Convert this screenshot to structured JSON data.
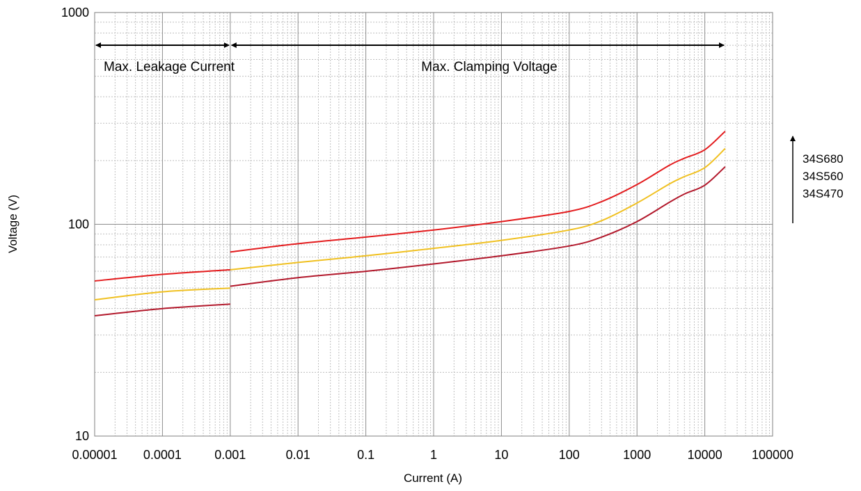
{
  "chart_data": {
    "type": "line",
    "xlabel": "Current (A)",
    "ylabel": "Voltage (V)",
    "x_scale": "log",
    "y_scale": "log",
    "xlim": [
      1e-05,
      100000
    ],
    "ylim": [
      10,
      1000
    ],
    "grid": true,
    "x_tick_labels": [
      "0.00001",
      "0.0001",
      "0.001",
      "0.01",
      "0.1",
      "1",
      "10",
      "100",
      "1000",
      "10000",
      "100000"
    ],
    "x_tick_values": [
      1e-05,
      0.0001,
      0.001,
      0.01,
      0.1,
      1,
      10,
      100,
      1000,
      10000,
      100000
    ],
    "y_tick_labels": [
      "10",
      "100",
      "1000"
    ],
    "y_tick_values": [
      10,
      100,
      1000
    ],
    "annotations": {
      "leakage": {
        "text": "Max. Leakage Current",
        "from": 1e-05,
        "to": 0.001
      },
      "clamping": {
        "text": "Max. Clamping Voltage",
        "from": 0.001,
        "to": 20000
      }
    },
    "ordering_arrow": {
      "labels": [
        "34S680",
        "34S560",
        "34S470"
      ]
    },
    "series": [
      {
        "color": "#e31a1c",
        "segments": [
          {
            "x": [
              1e-05,
              0.0001,
              0.001
            ],
            "y": [
              54,
              58,
              61
            ]
          },
          {
            "x": [
              0.001,
              0.01,
              0.1,
              1,
              10,
              100,
              300,
              1000,
              3000,
              5000,
              10000,
              20000
            ],
            "y": [
              74,
              81,
              87,
              94,
              103,
              115,
              128,
              154,
              190,
              205,
              225,
              275
            ]
          }
        ]
      },
      {
        "color": "#f0c020",
        "segments": [
          {
            "x": [
              1e-05,
              0.0001,
              0.001
            ],
            "y": [
              44,
              48,
              50
            ]
          },
          {
            "x": [
              0.001,
              0.01,
              0.1,
              1,
              10,
              100,
              300,
              1000,
              3000,
              5000,
              10000,
              20000
            ],
            "y": [
              61,
              66,
              71,
              77,
              84,
              94,
              104,
              126,
              155,
              168,
              185,
              228
            ]
          }
        ]
      },
      {
        "color": "#b2182b",
        "segments": [
          {
            "x": [
              1e-05,
              0.0001,
              0.001
            ],
            "y": [
              37,
              40,
              42
            ]
          },
          {
            "x": [
              0.001,
              0.01,
              0.1,
              1,
              10,
              100,
              300,
              1000,
              3000,
              5000,
              10000,
              20000
            ],
            "y": [
              51,
              56,
              60,
              65,
              71,
              79,
              87,
              103,
              127,
              139,
              153,
              187
            ]
          }
        ]
      }
    ]
  }
}
